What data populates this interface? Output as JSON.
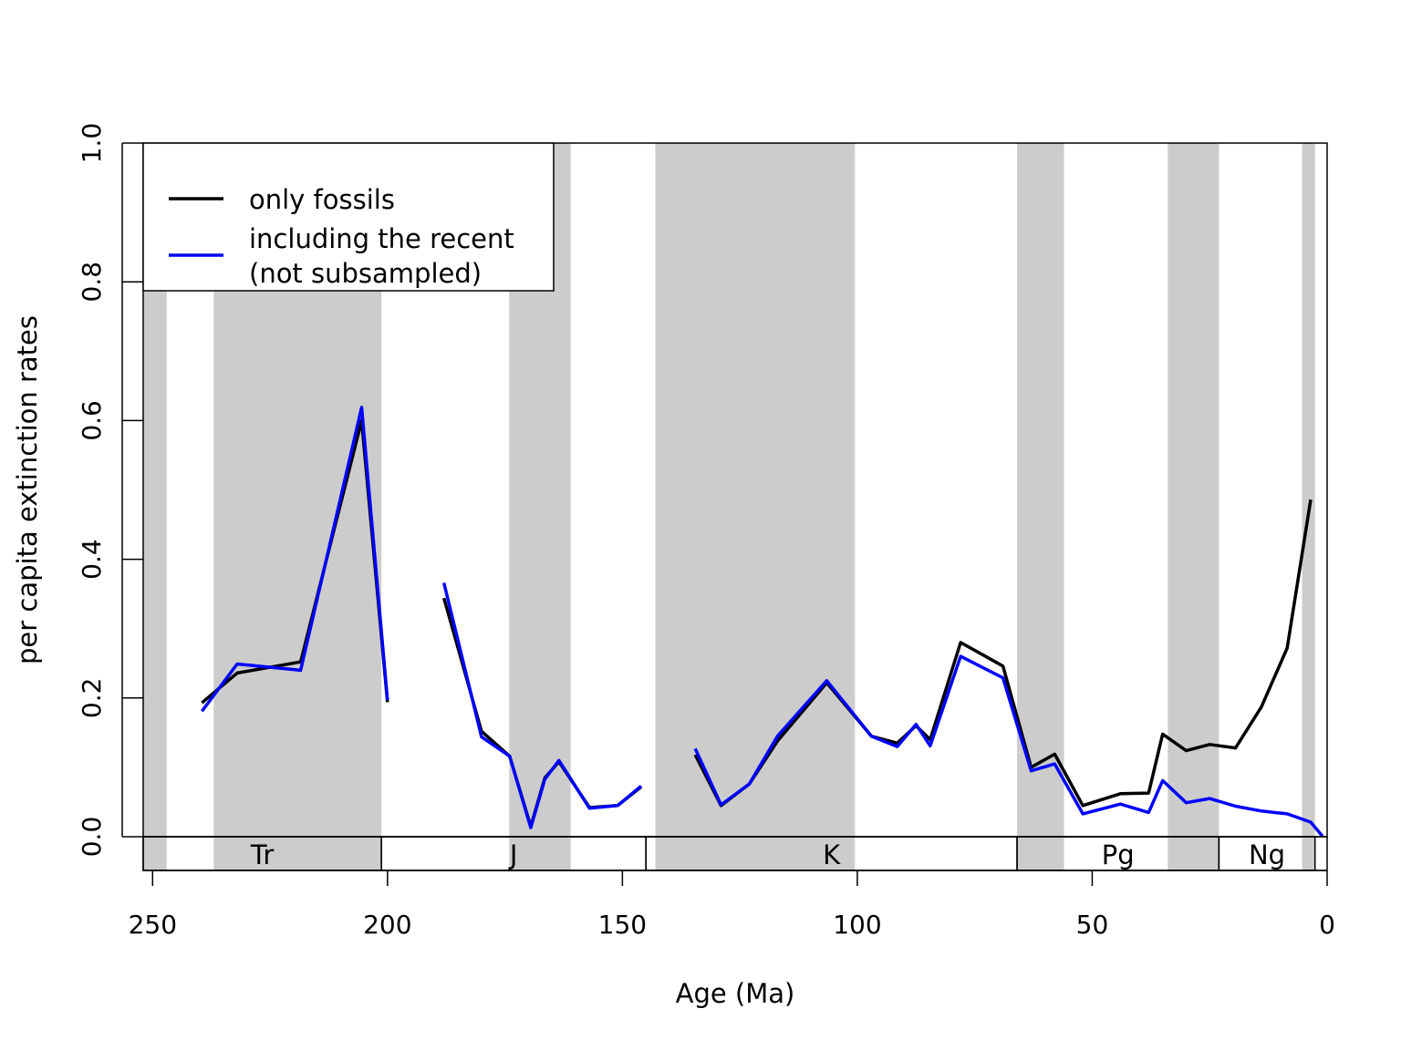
{
  "chart_data": {
    "type": "line",
    "xlabel": "Age (Ma)",
    "ylabel": "per capita extinction rates",
    "xlim": [
      252,
      0
    ],
    "ylim": [
      0,
      1
    ],
    "x_ticks": [
      250,
      200,
      150,
      100,
      50,
      0
    ],
    "x_tick_labels": [
      "250",
      "200",
      "150",
      "100",
      "50",
      "0"
    ],
    "y_ticks": [
      0,
      0.2,
      0.4,
      0.6,
      0.8,
      1
    ],
    "y_tick_labels": [
      "0.0",
      "0.2",
      "0.4",
      "0.6",
      "0.8",
      "1.0"
    ],
    "grid": false,
    "legend": {
      "position": "top-left",
      "entries": [
        {
          "label": "only fossils",
          "color": "#000000"
        },
        {
          "label": "including the recent",
          "label_line2": "(not subsampled)",
          "color": "#0000ff"
        }
      ]
    },
    "shaded_bands": [
      [
        252,
        247
      ],
      [
        237,
        201.3
      ],
      [
        174.1,
        161
      ],
      [
        143,
        100.5
      ],
      [
        66,
        56
      ],
      [
        33.9,
        23.03
      ],
      [
        5.33,
        2.58
      ]
    ],
    "shade_color": "#cccccc",
    "periods": [
      {
        "label": "Tr",
        "start": 252,
        "end": 201.3
      },
      {
        "label": "J",
        "start": 201.3,
        "end": 145
      },
      {
        "label": "K",
        "start": 145,
        "end": 66
      },
      {
        "label": "Pg",
        "start": 66,
        "end": 23.03
      },
      {
        "label": "Ng",
        "start": 23.03,
        "end": 2.58
      }
    ],
    "series": [
      {
        "name": "only fossils",
        "color": "#000000",
        "segments": [
          [
            [
              239.5,
              0.193
            ],
            [
              232,
              0.236
            ],
            [
              218.5,
              0.252
            ],
            [
              205.5,
              0.6
            ],
            [
              200,
              0.194
            ]
          ],
          [
            [
              188,
              0.344
            ],
            [
              180,
              0.152
            ],
            [
              174,
              0.116
            ],
            [
              169.5,
              0.015
            ],
            [
              166.5,
              0.085
            ],
            [
              163.5,
              0.108
            ],
            [
              157,
              0.042
            ],
            [
              151,
              0.045
            ],
            [
              146,
              0.072
            ]
          ],
          [
            [
              134.5,
              0.118
            ],
            [
              129,
              0.045
            ],
            [
              123,
              0.076
            ],
            [
              117,
              0.138
            ],
            [
              106.5,
              0.222
            ],
            [
              97,
              0.145
            ],
            [
              91.5,
              0.135
            ],
            [
              87.5,
              0.16
            ],
            [
              84.5,
              0.14
            ],
            [
              78,
              0.28
            ],
            [
              69,
              0.246
            ],
            [
              63,
              0.1
            ],
            [
              58,
              0.119
            ],
            [
              52,
              0.045
            ],
            [
              44,
              0.062
            ],
            [
              38,
              0.063
            ],
            [
              35,
              0.148
            ],
            [
              30,
              0.124
            ],
            [
              25,
              0.133
            ],
            [
              19.5,
              0.128
            ],
            [
              14,
              0.187
            ],
            [
              8.5,
              0.272
            ],
            [
              3.5,
              0.486
            ]
          ]
        ]
      },
      {
        "name": "including the recent (not subsampled)",
        "color": "#0000ff",
        "segments": [
          [
            [
              239.5,
              0.181
            ],
            [
              232,
              0.249
            ],
            [
              218.5,
              0.24
            ],
            [
              205.5,
              0.619
            ],
            [
              200,
              0.197
            ]
          ],
          [
            [
              188,
              0.366
            ],
            [
              180,
              0.144
            ],
            [
              174,
              0.116
            ],
            [
              169.5,
              0.013
            ],
            [
              166.5,
              0.083
            ],
            [
              163.5,
              0.11
            ],
            [
              157,
              0.041
            ],
            [
              151,
              0.045
            ],
            [
              146,
              0.073
            ]
          ],
          [
            [
              134.5,
              0.127
            ],
            [
              129,
              0.046
            ],
            [
              123,
              0.076
            ],
            [
              117,
              0.145
            ],
            [
              106.5,
              0.225
            ],
            [
              97,
              0.145
            ],
            [
              91.5,
              0.13
            ],
            [
              87.5,
              0.162
            ],
            [
              84.5,
              0.131
            ],
            [
              78,
              0.26
            ],
            [
              69,
              0.229
            ],
            [
              63,
              0.095
            ],
            [
              58,
              0.105
            ],
            [
              52,
              0.033
            ],
            [
              44,
              0.047
            ],
            [
              38,
              0.035
            ],
            [
              35,
              0.081
            ],
            [
              30,
              0.049
            ],
            [
              25,
              0.055
            ],
            [
              19.5,
              0.044
            ],
            [
              14,
              0.037
            ],
            [
              8.5,
              0.033
            ],
            [
              3.5,
              0.021
            ],
            [
              1,
              0.001
            ]
          ]
        ]
      }
    ]
  }
}
